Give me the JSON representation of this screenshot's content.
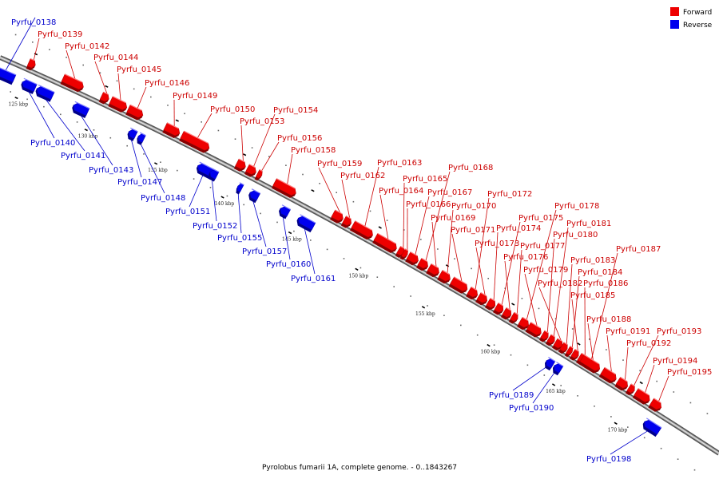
{
  "caption": "Pyrolobus fumarii 1A, complete genome. - 0..1843267",
  "legend": [
    {
      "label": "Forward",
      "color": "#ee0000"
    },
    {
      "label": "Reverse",
      "color": "#0000ee"
    }
  ],
  "colors": {
    "forward_label": "#cc0000",
    "reverse_label": "#0000cc",
    "backbone": "#888888"
  },
  "ticks": [
    {
      "kbp": 125,
      "label": "125 kbp"
    },
    {
      "kbp": 130,
      "label": "130 kbp"
    },
    {
      "kbp": 135,
      "label": "135 kbp"
    },
    {
      "kbp": 140,
      "label": "140 kbp"
    },
    {
      "kbp": 145,
      "label": "145 kbp"
    },
    {
      "kbp": 150,
      "label": "150 kbp"
    },
    {
      "kbp": 155,
      "label": "155 kbp"
    },
    {
      "kbp": 160,
      "label": "160 kbp"
    },
    {
      "kbp": 165,
      "label": "165 kbp"
    },
    {
      "kbp": 170,
      "label": "170 kbp"
    }
  ],
  "genes": [
    {
      "name": "Pyrfu_0138",
      "strand": "reverse"
    },
    {
      "name": "Pyrfu_0139",
      "strand": "forward"
    },
    {
      "name": "Pyrfu_0140",
      "strand": "reverse"
    },
    {
      "name": "Pyrfu_0141",
      "strand": "reverse"
    },
    {
      "name": "Pyrfu_0142",
      "strand": "forward"
    },
    {
      "name": "Pyrfu_0143",
      "strand": "reverse"
    },
    {
      "name": "Pyrfu_0144",
      "strand": "forward"
    },
    {
      "name": "Pyrfu_0145",
      "strand": "forward"
    },
    {
      "name": "Pyrfu_0146",
      "strand": "forward"
    },
    {
      "name": "Pyrfu_0147",
      "strand": "reverse"
    },
    {
      "name": "Pyrfu_0148",
      "strand": "reverse"
    },
    {
      "name": "Pyrfu_0149",
      "strand": "forward"
    },
    {
      "name": "Pyrfu_0150",
      "strand": "forward"
    },
    {
      "name": "Pyrfu_0151",
      "strand": "reverse"
    },
    {
      "name": "Pyrfu_0152",
      "strand": "reverse"
    },
    {
      "name": "Pyrfu_0153",
      "strand": "forward"
    },
    {
      "name": "Pyrfu_0154",
      "strand": "forward"
    },
    {
      "name": "Pyrfu_0155",
      "strand": "reverse"
    },
    {
      "name": "Pyrfu_0156",
      "strand": "forward"
    },
    {
      "name": "Pyrfu_0157",
      "strand": "reverse"
    },
    {
      "name": "Pyrfu_0158",
      "strand": "forward"
    },
    {
      "name": "Pyrfu_0159",
      "strand": "forward"
    },
    {
      "name": "Pyrfu_0160",
      "strand": "reverse"
    },
    {
      "name": "Pyrfu_0161",
      "strand": "reverse"
    },
    {
      "name": "Pyrfu_0162",
      "strand": "forward"
    },
    {
      "name": "Pyrfu_0163",
      "strand": "forward"
    },
    {
      "name": "Pyrfu_0164",
      "strand": "forward"
    },
    {
      "name": "Pyrfu_0165",
      "strand": "forward"
    },
    {
      "name": "Pyrfu_0166",
      "strand": "forward"
    },
    {
      "name": "Pyrfu_0167",
      "strand": "forward"
    },
    {
      "name": "Pyrfu_0168",
      "strand": "forward"
    },
    {
      "name": "Pyrfu_0169",
      "strand": "forward"
    },
    {
      "name": "Pyrfu_0170",
      "strand": "forward"
    },
    {
      "name": "Pyrfu_0171",
      "strand": "forward"
    },
    {
      "name": "Pyrfu_0172",
      "strand": "forward"
    },
    {
      "name": "Pyrfu_0173",
      "strand": "forward"
    },
    {
      "name": "Pyrfu_0174",
      "strand": "forward"
    },
    {
      "name": "Pyrfu_0175",
      "strand": "forward"
    },
    {
      "name": "Pyrfu_0176",
      "strand": "forward"
    },
    {
      "name": "Pyrfu_0177",
      "strand": "forward"
    },
    {
      "name": "Pyrfu_0178",
      "strand": "forward"
    },
    {
      "name": "Pyrfu_0179",
      "strand": "forward"
    },
    {
      "name": "Pyrfu_0180",
      "strand": "forward"
    },
    {
      "name": "Pyrfu_0181",
      "strand": "forward"
    },
    {
      "name": "Pyrfu_0182",
      "strand": "forward"
    },
    {
      "name": "Pyrfu_0183",
      "strand": "forward"
    },
    {
      "name": "Pyrfu_0184",
      "strand": "forward"
    },
    {
      "name": "Pyrfu_0185",
      "strand": "forward"
    },
    {
      "name": "Pyrfu_0186",
      "strand": "forward"
    },
    {
      "name": "Pyrfu_0187",
      "strand": "forward"
    },
    {
      "name": "Pyrfu_0188",
      "strand": "forward"
    },
    {
      "name": "Pyrfu_0189",
      "strand": "reverse"
    },
    {
      "name": "Pyrfu_0190",
      "strand": "reverse"
    },
    {
      "name": "Pyrfu_0191",
      "strand": "forward"
    },
    {
      "name": "Pyrfu_0192",
      "strand": "forward"
    },
    {
      "name": "Pyrfu_0193",
      "strand": "forward"
    },
    {
      "name": "Pyrfu_0194",
      "strand": "forward"
    },
    {
      "name": "Pyrfu_0195",
      "strand": "forward"
    },
    {
      "name": "Pyrfu_0198",
      "strand": "reverse"
    }
  ]
}
